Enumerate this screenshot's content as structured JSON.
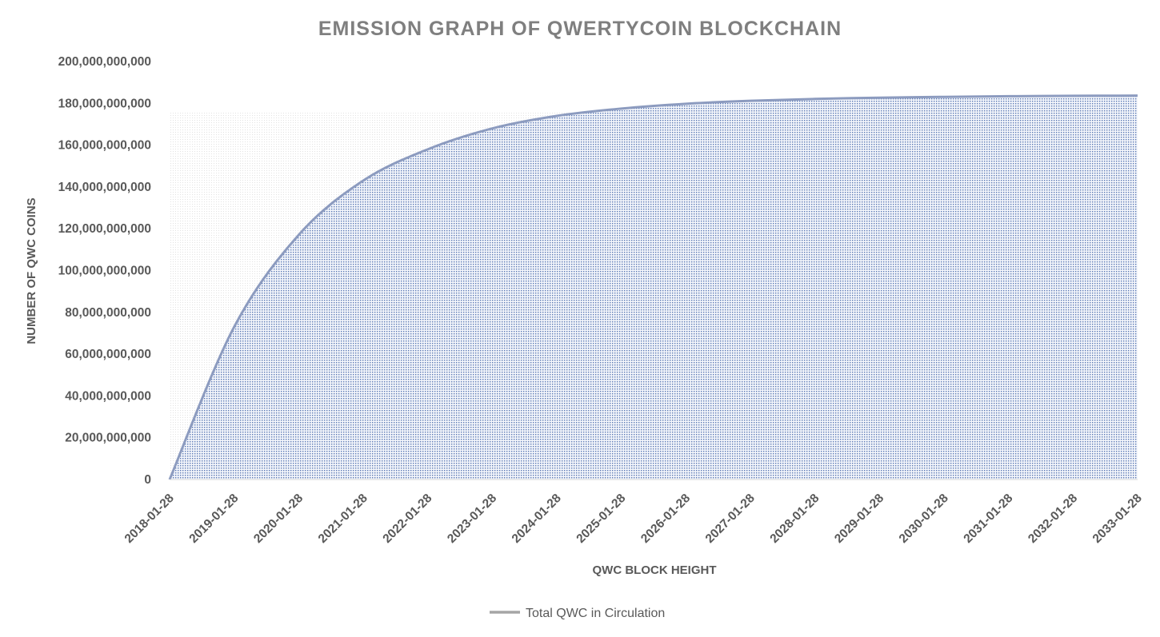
{
  "chart_data": {
    "type": "area",
    "title": "EMISSION  GRAPH  OF  QWERTYCOIN  BLOCKCHAIN",
    "xlabel": "QWC BLOCK HEIGHT",
    "ylabel": "NUMBER OF QWC COINS",
    "ylim": [
      0,
      200000000000
    ],
    "yticks": [
      0,
      20000000000,
      40000000000,
      60000000000,
      80000000000,
      100000000000,
      120000000000,
      140000000000,
      160000000000,
      180000000000,
      200000000000
    ],
    "ytick_labels": [
      "0",
      "20,000,000,000",
      "40,000,000,000",
      "60,000,000,000",
      "80,000,000,000",
      "100,000,000,000",
      "120,000,000,000",
      "140,000,000,000",
      "160,000,000,000",
      "180,000,000,000",
      "200,000,000,000"
    ],
    "categories": [
      "2018-01-28",
      "2019-01-28",
      "2020-01-28",
      "2021-01-28",
      "2022-01-28",
      "2023-01-28",
      "2024-01-28",
      "2025-01-28",
      "2026-01-28",
      "2027-01-28",
      "2028-01-28",
      "2029-01-28",
      "2030-01-28",
      "2031-01-28",
      "2032-01-28",
      "2033-01-28"
    ],
    "series": [
      {
        "name": "Total QWC in Circulation",
        "color": "#8c9bbf",
        "fill_color": "#4a6aa8",
        "values": [
          0,
          73000000000,
          117000000000,
          143000000000,
          158000000000,
          168000000000,
          174000000000,
          177500000000,
          179800000000,
          181200000000,
          182100000000,
          182700000000,
          183100000000,
          183400000000,
          183600000000,
          183700000000
        ]
      }
    ],
    "legend_position": "bottom",
    "grid": false
  }
}
